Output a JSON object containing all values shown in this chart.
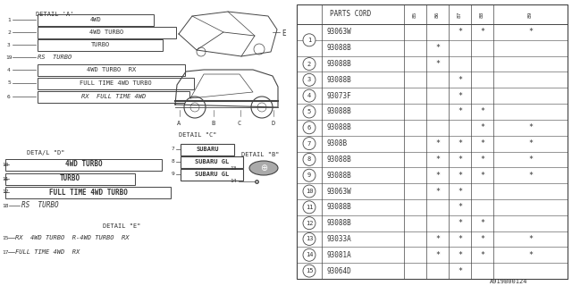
{
  "bg_color": "#ffffff",
  "lc": "#444444",
  "tc": "#333333",
  "diagram_code": "A919B00124",
  "table_header_cols": [
    "85",
    "86",
    "87",
    "88",
    "89"
  ],
  "rows": [
    {
      "num": 1,
      "part": "93063W",
      "marks": [
        0,
        0,
        1,
        1,
        1
      ],
      "grouped": true
    },
    {
      "num": 1,
      "part": "93088B",
      "marks": [
        0,
        1,
        0,
        0,
        0
      ],
      "grouped": false
    },
    {
      "num": 2,
      "part": "93088B",
      "marks": [
        0,
        1,
        0,
        0,
        0
      ],
      "grouped": false
    },
    {
      "num": 3,
      "part": "93088B",
      "marks": [
        0,
        0,
        1,
        0,
        0
      ],
      "grouped": false
    },
    {
      "num": 4,
      "part": "93073F",
      "marks": [
        0,
        0,
        1,
        0,
        0
      ],
      "grouped": false
    },
    {
      "num": 5,
      "part": "93088B",
      "marks": [
        0,
        0,
        1,
        1,
        0
      ],
      "grouped": false
    },
    {
      "num": 6,
      "part": "93088B",
      "marks": [
        0,
        0,
        0,
        1,
        1
      ],
      "grouped": false
    },
    {
      "num": 7,
      "part": "9308B",
      "marks": [
        0,
        1,
        1,
        1,
        1
      ],
      "grouped": false
    },
    {
      "num": 8,
      "part": "93088B",
      "marks": [
        0,
        1,
        1,
        1,
        1
      ],
      "grouped": false
    },
    {
      "num": 9,
      "part": "93088B",
      "marks": [
        0,
        1,
        1,
        1,
        1
      ],
      "grouped": false
    },
    {
      "num": 10,
      "part": "93063W",
      "marks": [
        0,
        1,
        1,
        0,
        0
      ],
      "grouped": false
    },
    {
      "num": 11,
      "part": "93088B",
      "marks": [
        0,
        0,
        1,
        0,
        0
      ],
      "grouped": false
    },
    {
      "num": 12,
      "part": "93088B",
      "marks": [
        0,
        0,
        1,
        1,
        0
      ],
      "grouped": false
    },
    {
      "num": 13,
      "part": "93033A",
      "marks": [
        0,
        1,
        1,
        1,
        1
      ],
      "grouped": false
    },
    {
      "num": 14,
      "part": "93081A",
      "marks": [
        0,
        1,
        1,
        1,
        1
      ],
      "grouped": false
    },
    {
      "num": 15,
      "part": "93064D",
      "marks": [
        0,
        0,
        1,
        0,
        0
      ],
      "grouped": false
    }
  ]
}
